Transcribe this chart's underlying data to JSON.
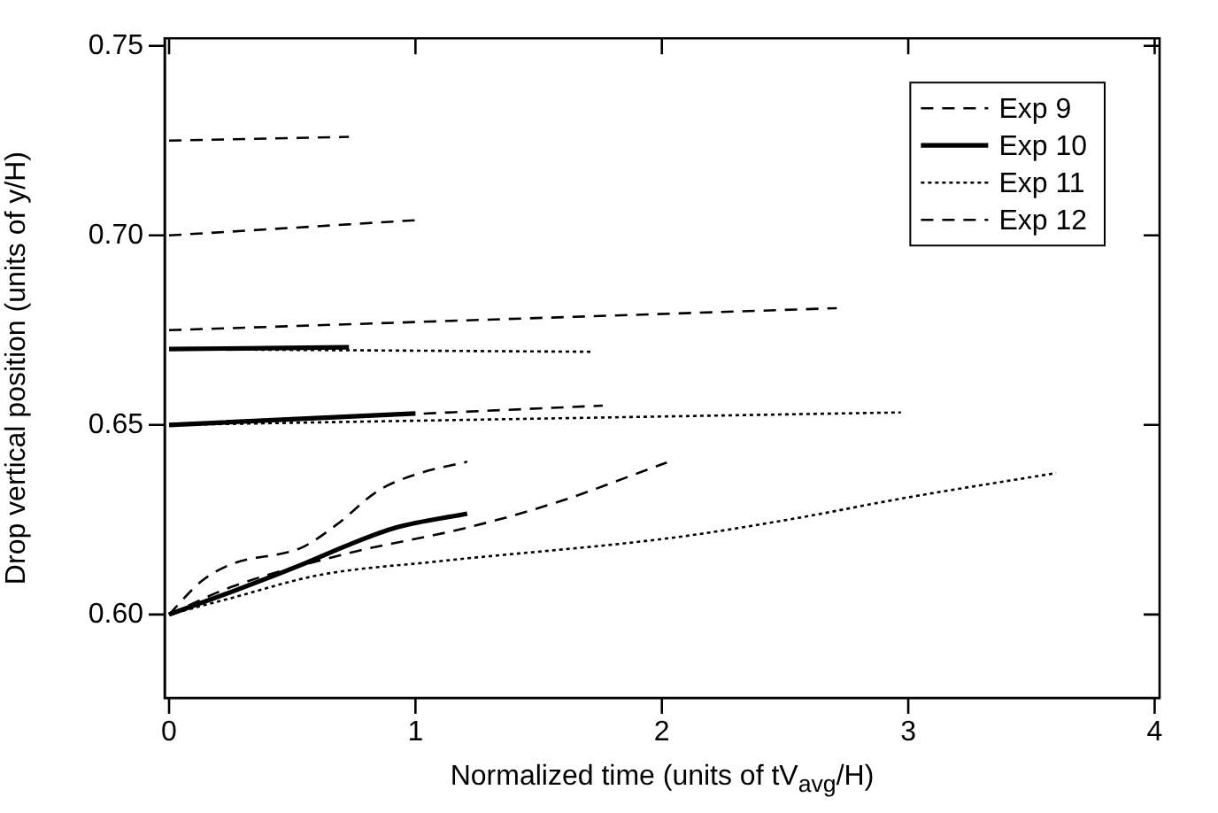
{
  "chart_data": {
    "type": "line",
    "xlabel": "Normalized time (units of tV$_{avg}$/H)",
    "ylabel": "Drop vertical position (units of y/H)",
    "xlim": [
      -0.018,
      4.02
    ],
    "xticks": [
      0,
      1,
      2,
      3,
      4
    ],
    "ylim": [
      0.578,
      0.752
    ],
    "yticks": [
      {
        "value": 0.6,
        "label": "0.60"
      },
      {
        "value": 0.65,
        "label": "0.65"
      },
      {
        "value": 0.7,
        "label": "0.70"
      },
      {
        "value": 0.75,
        "label": "0.75"
      }
    ],
    "legend": "top right",
    "marker": "none",
    "grid": false,
    "series": [
      {
        "name": "Exp 9",
        "color": "#000000",
        "line_style": "dashed",
        "x": [
          0,
          0.73,
          null,
          0,
          1.0,
          null,
          0,
          0.13,
          0.25,
          0.54,
          0.68,
          0.85,
          1.01,
          1.21
        ],
        "values": [
          0.725,
          0.726,
          null,
          0.7,
          0.704,
          null,
          0.6,
          0.6087,
          0.6132,
          0.6177,
          0.6237,
          0.6327,
          0.6371,
          0.6403
        ]
      },
      {
        "name": "Exp 10",
        "color": "#000000",
        "line_style": "solid",
        "x": [
          0,
          0.73,
          null,
          0,
          1.0,
          null,
          0,
          0.25,
          0.54,
          0.73,
          0.92,
          1.21
        ],
        "values": [
          0.67,
          0.6705,
          null,
          0.65,
          0.653,
          null,
          0.6,
          0.6059,
          0.6132,
          0.6184,
          0.6229,
          0.6266
        ]
      },
      {
        "name": "Exp 11",
        "color": "#000000",
        "line_style": "dotted",
        "x": [
          0,
          1.71,
          null,
          0,
          2.97,
          null,
          0,
          0.25,
          0.61,
          1.09,
          2.05,
          2.52,
          3.0,
          3.6
        ],
        "values": [
          0.67,
          0.6693,
          null,
          0.65,
          0.6533,
          null,
          0.6,
          0.6043,
          0.6104,
          0.614,
          0.6203,
          0.6251,
          0.6309,
          0.6373
        ]
      },
      {
        "name": "Exp 12",
        "color": "#000000",
        "line_style": "dashed",
        "x": [
          0,
          2.71,
          null,
          0,
          1.76,
          null,
          0,
          0.25,
          0.73,
          1.21,
          1.57,
          2.02
        ],
        "values": [
          0.675,
          0.6808,
          null,
          0.65,
          0.6551,
          null,
          0.6,
          0.6072,
          0.6162,
          0.6229,
          0.6295,
          0.6401
        ]
      }
    ]
  }
}
